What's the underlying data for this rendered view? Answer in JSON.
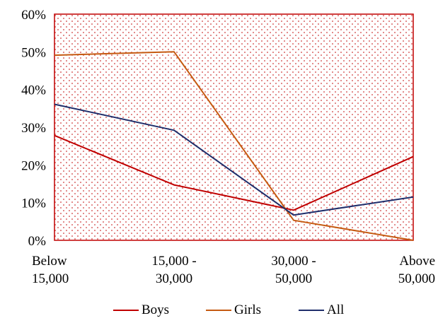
{
  "chart_data": {
    "type": "line",
    "categories": [
      "Below\n15,000",
      "15,000 -\n30,000",
      "30,000 -\n50,000",
      "Above\n50,000"
    ],
    "series": [
      {
        "name": "Boys",
        "color": "#c00000",
        "values": [
          27.8,
          14.7,
          8.0,
          22.2
        ]
      },
      {
        "name": "Girls",
        "color": "#c55a11",
        "values": [
          49.1,
          50.0,
          5.3,
          0.0
        ]
      },
      {
        "name": "All",
        "color": "#1f2e6b",
        "values": [
          36.1,
          29.2,
          6.7,
          11.5
        ]
      }
    ],
    "y_ticks": [
      "0%",
      "10%",
      "20%",
      "30%",
      "40%",
      "50%",
      "60%"
    ],
    "ylim": [
      0,
      60
    ],
    "title": "",
    "xlabel": "",
    "ylabel": "",
    "legend_position": "bottom",
    "plot_border_color": "#c00000",
    "plot_pattern_color": "#c00000",
    "grid": false
  }
}
